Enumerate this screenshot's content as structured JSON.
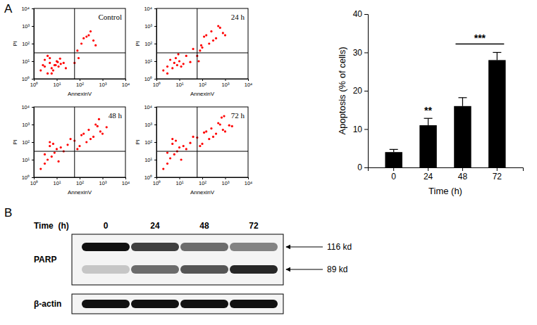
{
  "panel_labels": [
    "A",
    "B"
  ],
  "chart_data": [
    {
      "type": "scatter",
      "title": "Control",
      "x_label": "AnnexinV",
      "y_label": "PI",
      "log": true,
      "color": "#ff0000",
      "marker": "dot",
      "xlim": [
        1,
        10000
      ],
      "ylim": [
        1,
        10000
      ],
      "xticks": [
        {
          "value": 1,
          "label": "10⁰"
        },
        {
          "value": 10,
          "label": "10¹"
        },
        {
          "value": 100,
          "label": "10²"
        },
        {
          "value": 1000,
          "label": "10³"
        },
        {
          "value": 10000,
          "label": "10⁴"
        }
      ],
      "yticks": [
        {
          "value": 1,
          "label": "10⁰"
        },
        {
          "value": 10,
          "label": "10¹"
        },
        {
          "value": 100,
          "label": "10²"
        },
        {
          "value": 1000,
          "label": "10³"
        },
        {
          "value": 10000,
          "label": "10⁴"
        }
      ],
      "quadrant_x": 60,
      "quadrant_y": 30,
      "x": [
        2,
        3,
        4,
        5,
        6,
        8,
        10,
        12,
        15,
        3,
        5,
        7,
        9,
        11,
        4,
        6,
        2.5,
        20,
        25,
        14,
        150,
        250,
        400,
        300,
        120,
        200,
        80,
        90,
        60,
        500
      ],
      "values": [
        3,
        5,
        2,
        8,
        4,
        6,
        10,
        5,
        7,
        12,
        15,
        3,
        6,
        9,
        20,
        2,
        6,
        8,
        4,
        14,
        200,
        300,
        150,
        500,
        100,
        250,
        40,
        15,
        8,
        80
      ]
    },
    {
      "type": "scatter",
      "title": "24 h",
      "x_label": "AnnexinV",
      "y_label": "PI",
      "log": true,
      "color": "#ff0000",
      "marker": "dot",
      "xlim": [
        1,
        10000
      ],
      "ylim": [
        1,
        10000
      ],
      "xticks": [
        {
          "value": 1,
          "label": "10⁰"
        },
        {
          "value": 10,
          "label": "10¹"
        },
        {
          "value": 100,
          "label": "10²"
        },
        {
          "value": 1000,
          "label": "10³"
        },
        {
          "value": 10000,
          "label": "10⁴"
        }
      ],
      "yticks": [
        {
          "value": 1,
          "label": "10⁰"
        },
        {
          "value": 10,
          "label": "10¹"
        },
        {
          "value": 100,
          "label": "10²"
        },
        {
          "value": 1000,
          "label": "10³"
        },
        {
          "value": 10000,
          "label": "10⁴"
        }
      ],
      "quadrant_x": 60,
      "quadrant_y": 30,
      "x": [
        2,
        3,
        5,
        6,
        8,
        10,
        12,
        4,
        7,
        15,
        20,
        30,
        3,
        9,
        150,
        250,
        400,
        600,
        300,
        800,
        200,
        100,
        120,
        500,
        1000,
        80,
        60,
        70,
        90,
        40
      ],
      "values": [
        3,
        5,
        4,
        8,
        6,
        10,
        5,
        12,
        15,
        7,
        20,
        9,
        2,
        25,
        300,
        500,
        200,
        800,
        150,
        400,
        100,
        60,
        250,
        1000,
        300,
        40,
        20,
        10,
        80,
        50
      ]
    },
    {
      "type": "scatter",
      "title": "48 h",
      "x_label": "AnnexinV",
      "y_label": "PI",
      "log": true,
      "color": "#ff0000",
      "marker": "dot",
      "xlim": [
        1,
        10000
      ],
      "ylim": [
        1,
        10000
      ],
      "xticks": [
        {
          "value": 1,
          "label": "10⁰"
        },
        {
          "value": 10,
          "label": "10¹"
        },
        {
          "value": 100,
          "label": "10²"
        },
        {
          "value": 1000,
          "label": "10³"
        },
        {
          "value": 10000,
          "label": "10⁴"
        }
      ],
      "yticks": [
        {
          "value": 1,
          "label": "10⁰"
        },
        {
          "value": 10,
          "label": "10¹"
        },
        {
          "value": 100,
          "label": "10²"
        },
        {
          "value": 1000,
          "label": "10³"
        },
        {
          "value": 10000,
          "label": "10⁴"
        }
      ],
      "quadrant_x": 60,
      "quadrant_y": 30,
      "x": [
        2,
        3,
        4,
        6,
        8,
        10,
        5,
        7,
        12,
        15,
        20,
        3,
        5,
        30,
        40,
        150,
        250,
        400,
        600,
        300,
        800,
        200,
        100,
        120,
        500,
        1000,
        1500,
        80,
        60,
        700
      ],
      "values": [
        3,
        6,
        10,
        15,
        25,
        40,
        60,
        80,
        8,
        50,
        30,
        20,
        100,
        70,
        150,
        300,
        500,
        200,
        800,
        150,
        400,
        100,
        60,
        250,
        1000,
        300,
        700,
        40,
        120,
        2000
      ]
    },
    {
      "type": "scatter",
      "title": "72 h",
      "x_label": "AnnexinV",
      "y_label": "PI",
      "log": true,
      "color": "#ff0000",
      "marker": "dot",
      "xlim": [
        1,
        10000
      ],
      "ylim": [
        1,
        10000
      ],
      "xticks": [
        {
          "value": 1,
          "label": "10⁰"
        },
        {
          "value": 10,
          "label": "10¹"
        },
        {
          "value": 100,
          "label": "10²"
        },
        {
          "value": 1000,
          "label": "10³"
        },
        {
          "value": 10000,
          "label": "10⁴"
        }
      ],
      "yticks": [
        {
          "value": 1,
          "label": "10⁰"
        },
        {
          "value": 10,
          "label": "10¹"
        },
        {
          "value": 100,
          "label": "10²"
        },
        {
          "value": 1000,
          "label": "10³"
        },
        {
          "value": 10000,
          "label": "10⁴"
        }
      ],
      "quadrant_x": 60,
      "quadrant_y": 30,
      "x": [
        2,
        3,
        4,
        6,
        8,
        10,
        5,
        7,
        12,
        15,
        20,
        3,
        5,
        30,
        40,
        150,
        250,
        400,
        600,
        300,
        800,
        200,
        100,
        120,
        500,
        1000,
        1500,
        80,
        60,
        700,
        2000,
        900
      ],
      "values": [
        3,
        6,
        12,
        20,
        30,
        50,
        80,
        120,
        10,
        60,
        40,
        25,
        150,
        90,
        200,
        400,
        600,
        300,
        1000,
        200,
        500,
        150,
        80,
        350,
        1200,
        400,
        900,
        60,
        180,
        2500,
        800,
        3000
      ]
    },
    {
      "type": "bar",
      "x_label": "Time (h)",
      "y_label": "Apoptosis (% of cells)",
      "color": "#000000",
      "categories": [
        "0",
        "24",
        "48",
        "72"
      ],
      "values": [
        4,
        11,
        16,
        28
      ],
      "errors": [
        0.7,
        1.8,
        2.2,
        2
      ],
      "ylim": [
        0,
        40
      ],
      "yticks": [
        0,
        10,
        20,
        30,
        40
      ],
      "annotations": [
        {
          "text": "**",
          "from": "24",
          "to": "24"
        },
        {
          "text": "***",
          "from": "48",
          "to": "72"
        }
      ]
    }
  ],
  "blot": {
    "title": "Time  (h)",
    "lanes": [
      "0",
      "24",
      "48",
      "72"
    ],
    "rows": [
      {
        "label": "PARP",
        "bands": [
          {
            "label": "116 kd",
            "intensity": [
              1,
              0.8,
              0.6,
              0.5
            ]
          },
          {
            "label": "89 kd",
            "intensity": [
              0.2,
              0.6,
              0.7,
              0.9
            ]
          }
        ]
      },
      {
        "label": "β-actin",
        "bands": [
          {
            "intensity": [
              1,
              1,
              1,
              1
            ]
          }
        ]
      }
    ]
  }
}
